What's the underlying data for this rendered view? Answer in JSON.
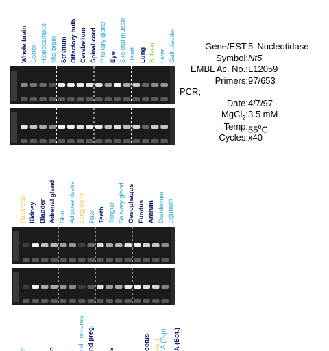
{
  "colors": {
    "navy": "#0b1a6e",
    "cyan": "#2aa7d6",
    "green": "#7fc31c",
    "yellow": "#f2c744"
  },
  "panel1": {
    "labels": [
      {
        "text": "Whole brain",
        "color": "navy"
      },
      {
        "text": "Cortex",
        "color": "cyan"
      },
      {
        "text": "Hippocampus",
        "color": "cyan"
      },
      {
        "text": "Mid brain",
        "color": "cyan"
      },
      {
        "text": "Striatum",
        "color": "navy"
      },
      {
        "text": "Olfactory bulb",
        "color": "navy"
      },
      {
        "text": "Cerebellum",
        "color": "navy"
      },
      {
        "text": "Spinal cord",
        "color": "navy"
      },
      {
        "text": "Pituitary gland",
        "color": "cyan"
      },
      {
        "text": "Eye",
        "color": "navy"
      },
      {
        "text": "Skeletal muscle",
        "color": "cyan"
      },
      {
        "text": "Heart",
        "color": "cyan"
      },
      {
        "text": "Lung",
        "color": "navy"
      },
      {
        "text": "Spleen",
        "color": "green"
      },
      {
        "text": "Liver",
        "color": "cyan"
      },
      {
        "text": "Gall bladder",
        "color": "cyan"
      }
    ],
    "gel_top": [
      0.45,
      0.35,
      0.3,
      0.2,
      0.95,
      0.95,
      0.9,
      0.9,
      0.85,
      0.55,
      1.0,
      0.6,
      0.75,
      0.3,
      0.45,
      0.5
    ],
    "gel_bottom": [
      0.9,
      0.7,
      0.6,
      0.45,
      0.95,
      0.95,
      0.85,
      0.9,
      0.9,
      0.7,
      0.85,
      0.7,
      0.8,
      0.3,
      0.75,
      0.7
    ]
  },
  "panel2": {
    "labels": [
      {
        "text": "Pancreas",
        "color": "yellow"
      },
      {
        "text": "Kidney",
        "color": "navy"
      },
      {
        "text": "Bladder",
        "color": "navy"
      },
      {
        "text": "Adrenal gland",
        "color": "navy"
      },
      {
        "text": "Skin",
        "color": "cyan"
      },
      {
        "text": "Adipose tissue",
        "color": "cyan"
      },
      {
        "text": "Long bone",
        "color": "yellow"
      },
      {
        "text": "Paw",
        "color": "cyan"
      },
      {
        "text": "Teeth",
        "color": "navy"
      },
      {
        "text": "Tongue",
        "color": "cyan"
      },
      {
        "text": "Salivary gland",
        "color": "cyan"
      },
      {
        "text": "Oesophagus",
        "color": "navy"
      },
      {
        "text": "Fundus",
        "color": "navy"
      },
      {
        "text": "Antrum",
        "color": "navy"
      },
      {
        "text": "Duodenum",
        "color": "cyan"
      },
      {
        "text": "Jejunum",
        "color": "cyan"
      }
    ],
    "gel_top": [
      0.1,
      0.95,
      0.7,
      0.65,
      0.55,
      0.5,
      0.1,
      0.3,
      0.85,
      0.6,
      0.65,
      0.9,
      0.95,
      0.8,
      0.75,
      0.45
    ],
    "gel_bottom": [
      0.1,
      0.95,
      0.6,
      0.6,
      0.5,
      0.45,
      0.1,
      0.25,
      0.85,
      0.55,
      0.6,
      0.9,
      0.95,
      0.85,
      0.8,
      0.4
    ]
  },
  "panel3": {
    "labels": [
      {
        "text": "n",
        "color": "cyan"
      },
      {
        "text": "n",
        "color": "navy"
      },
      {
        "text": "nd non-preg.",
        "color": "cyan"
      },
      {
        "text": "nd preg.",
        "color": "navy"
      },
      {
        "text": "s",
        "color": "navy"
      },
      {
        "text": "oetus",
        "color": "navy"
      },
      {
        "text": "duct",
        "color": "yellow"
      },
      {
        "text": "IA (Top)",
        "color": "cyan"
      },
      {
        "text": "A (Bot.)",
        "color": "navy"
      }
    ]
  },
  "info": {
    "rows": [
      {
        "key": "Gene/EST:",
        "value": "5' Nucleotidase"
      },
      {
        "key": "Symbol:",
        "value": "Nt5"
      },
      {
        "key": "EMBL Ac. No.:",
        "value": "L12059"
      },
      {
        "key": "Primers:",
        "value": "97/653"
      }
    ],
    "pcr_label": "PCR;",
    "pcr_rows": [
      {
        "key": "Date:",
        "value": "4/7/97"
      },
      {
        "key": "MgCl",
        "sub": "2",
        "key_end": ":",
        "value": "3.5 mM"
      },
      {
        "key": "Temp:",
        "value": "55",
        "sup": "o",
        "value_end": "C"
      },
      {
        "key": "Cycles:",
        "value": "x40"
      }
    ]
  }
}
